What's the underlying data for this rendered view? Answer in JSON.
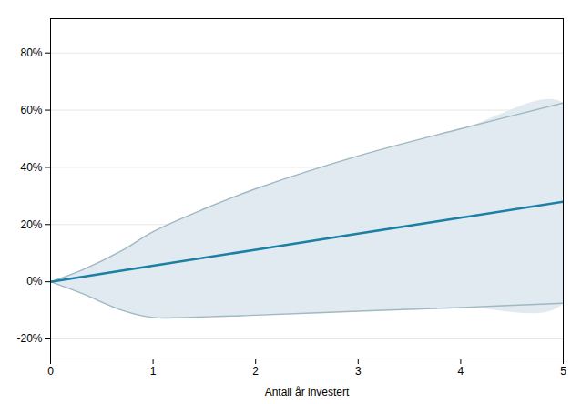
{
  "chart_data": {
    "type": "line",
    "title": "",
    "xlabel": "Antall år investert",
    "ylabel": "",
    "xlim": [
      0,
      5
    ],
    "ylim": [
      -0.27,
      0.92
    ],
    "xticks": [
      0,
      1,
      2,
      3,
      4,
      5
    ],
    "yticks": [
      {
        "value": -0.2,
        "label": "-20%"
      },
      {
        "value": 0.0,
        "label": "0%"
      },
      {
        "value": 0.2,
        "label": "20%"
      },
      {
        "value": 0.4,
        "label": "40%"
      },
      {
        "value": 0.6,
        "label": "60%"
      },
      {
        "value": 0.8,
        "label": "80%"
      }
    ],
    "grid": true,
    "x": [
      0,
      1,
      2,
      3,
      4,
      5
    ],
    "values": [
      0.0,
      0.056,
      0.112,
      0.168,
      0.224,
      0.28
    ],
    "color": "#1b7fa6",
    "band": {
      "color": "#e0eaf0",
      "upper": {
        "x": [
          0,
          0.3,
          0.7,
          1.0,
          1.5,
          2,
          3,
          4,
          5
        ],
        "values": [
          0.0,
          0.04,
          0.11,
          0.175,
          0.255,
          0.325,
          0.44,
          0.535,
          0.625
        ],
        "color": "#a0b8c2"
      },
      "lower": {
        "x": [
          0,
          0.3,
          0.7,
          1.0,
          1.3,
          2,
          3,
          4,
          5
        ],
        "values": [
          0.0,
          -0.04,
          -0.1,
          -0.125,
          -0.125,
          -0.117,
          -0.103,
          -0.09,
          -0.075
        ],
        "color": "#a0b8c2"
      }
    }
  }
}
